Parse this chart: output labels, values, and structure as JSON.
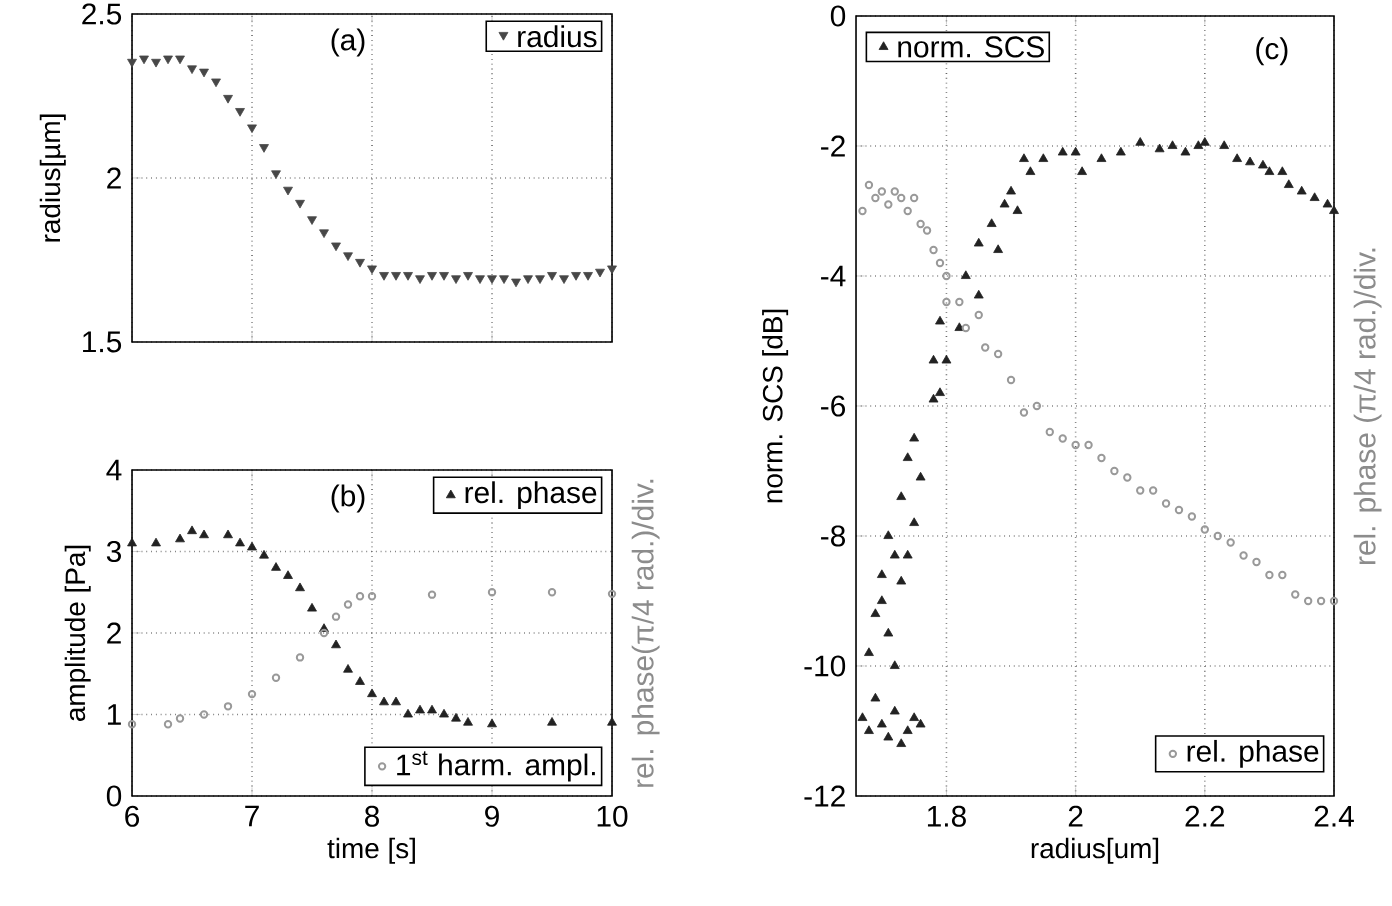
{
  "chart_data": [
    {
      "type": "scatter",
      "ylabel": "radius[µm]",
      "annotations": [
        "(a)"
      ],
      "x": [
        6.0,
        6.1,
        6.2,
        6.3,
        6.4,
        6.5,
        6.6,
        6.7,
        6.8,
        6.9,
        7.0,
        7.1,
        7.2,
        7.3,
        7.4,
        7.5,
        7.6,
        7.7,
        7.8,
        7.9,
        8.0,
        8.1,
        8.2,
        8.3,
        8.4,
        8.5,
        8.6,
        8.7,
        8.8,
        8.9,
        9.0,
        9.1,
        9.2,
        9.3,
        9.4,
        9.5,
        9.6,
        9.7,
        9.8,
        9.9,
        10.0
      ],
      "series": [
        {
          "name": "radius",
          "color": "#474747",
          "marker": "triangle down",
          "values": [
            2.35,
            2.36,
            2.35,
            2.36,
            2.36,
            2.33,
            2.32,
            2.29,
            2.24,
            2.2,
            2.15,
            2.09,
            2.01,
            1.96,
            1.92,
            1.87,
            1.83,
            1.79,
            1.76,
            1.74,
            1.72,
            1.7,
            1.7,
            1.7,
            1.69,
            1.7,
            1.7,
            1.69,
            1.7,
            1.69,
            1.69,
            1.69,
            1.68,
            1.69,
            1.69,
            1.7,
            1.69,
            1.7,
            1.7,
            1.71,
            1.72
          ]
        }
      ],
      "xlim": [
        6,
        10
      ],
      "xticks": [
        6,
        7,
        8,
        9,
        10
      ],
      "ylim": [
        1.5,
        2.5
      ],
      "yticks": [
        1.5,
        2,
        2.5
      ],
      "tick_labels": "y",
      "grid": true,
      "legend": "top right"
    },
    {
      "type": "scatter",
      "xlabel": "time [s]",
      "ylabel": "amplitude   [Pa]",
      "y2label": "rel. phase(π/4 rad.)/div.",
      "annotations": [
        "(b)"
      ],
      "series": [
        {
          "name": "rel. phase",
          "color": "#222222",
          "marker": "triangle",
          "x": [
            6.0,
            6.2,
            6.4,
            6.5,
            6.6,
            6.8,
            6.9,
            7.0,
            7.1,
            7.2,
            7.3,
            7.4,
            7.5,
            7.6,
            7.7,
            7.8,
            7.9,
            8.0,
            8.1,
            8.2,
            8.3,
            8.4,
            8.5,
            8.6,
            8.7,
            8.8,
            9.0,
            9.5,
            10.0
          ],
          "values": [
            3.1,
            3.1,
            3.15,
            3.25,
            3.2,
            3.2,
            3.1,
            3.05,
            2.95,
            2.8,
            2.7,
            2.55,
            2.3,
            2.05,
            1.85,
            1.55,
            1.4,
            1.25,
            1.15,
            1.15,
            1.0,
            1.05,
            1.05,
            1.0,
            0.95,
            0.9,
            0.88,
            0.9,
            0.9
          ]
        },
        {
          "name": "1$^{st}$ harm. ampl.",
          "color": "#999999",
          "marker": "circle",
          "x": [
            6.0,
            6.3,
            6.4,
            6.6,
            6.8,
            7.0,
            7.2,
            7.4,
            7.6,
            7.7,
            7.8,
            7.9,
            8.0,
            8.5,
            9.0,
            9.5,
            10.0
          ],
          "values": [
            0.88,
            0.88,
            0.95,
            1.0,
            1.1,
            1.25,
            1.45,
            1.7,
            2.0,
            2.2,
            2.35,
            2.45,
            2.45,
            2.47,
            2.5,
            2.5,
            2.48
          ]
        }
      ],
      "xlim": [
        6,
        10
      ],
      "xticks": [
        6,
        7,
        8,
        9,
        10
      ],
      "ylim": [
        0,
        4
      ],
      "yticks": [
        0,
        1,
        2,
        3,
        4
      ],
      "grid": true,
      "legend": "top right"
    },
    {
      "type": "scatter",
      "xlabel": "radius[um]",
      "ylabel": "norm. SCS   [dB]",
      "y2label": "rel. phase (π/4 rad.)/div.",
      "annotations": [
        "(c)"
      ],
      "series": [
        {
          "name": "norm. SCS",
          "color": "#222222",
          "marker": "triangle",
          "x": [
            1.67,
            1.68,
            1.69,
            1.7,
            1.71,
            1.72,
            1.73,
            1.74,
            1.75,
            1.76,
            1.68,
            1.69,
            1.7,
            1.71,
            1.72,
            1.7,
            1.71,
            1.72,
            1.73,
            1.74,
            1.74,
            1.75,
            1.73,
            1.76,
            1.75,
            1.78,
            1.78,
            1.79,
            1.8,
            1.79,
            1.82,
            1.83,
            1.85,
            1.85,
            1.87,
            1.88,
            1.89,
            1.9,
            1.91,
            1.92,
            1.93,
            1.95,
            1.98,
            2.0,
            2.01,
            2.04,
            2.07,
            2.1,
            2.13,
            2.15,
            2.17,
            2.19,
            2.2,
            2.23,
            2.25,
            2.27,
            2.29,
            2.3,
            2.32,
            2.33,
            2.35,
            2.37,
            2.39,
            2.4
          ],
          "values": [
            -10.8,
            -11.0,
            -10.5,
            -10.9,
            -11.1,
            -10.7,
            -11.2,
            -11.0,
            -10.8,
            -10.9,
            -9.8,
            -9.2,
            -9.0,
            -9.5,
            -10.0,
            -8.6,
            -8.0,
            -8.3,
            -8.7,
            -8.3,
            -6.8,
            -6.5,
            -7.4,
            -7.1,
            -7.8,
            -5.9,
            -5.3,
            -5.8,
            -5.3,
            -4.7,
            -4.8,
            -4.0,
            -4.3,
            -3.5,
            -3.2,
            -3.6,
            -2.9,
            -2.7,
            -3.0,
            -2.2,
            -2.4,
            -2.2,
            -2.1,
            -2.1,
            -2.4,
            -2.2,
            -2.1,
            -1.95,
            -2.05,
            -2.0,
            -2.1,
            -2.0,
            -1.95,
            -2.0,
            -2.2,
            -2.25,
            -2.3,
            -2.4,
            -2.4,
            -2.6,
            -2.7,
            -2.8,
            -2.9,
            -3.0
          ]
        },
        {
          "name": "rel. phase",
          "color": "#999999",
          "marker": "circle",
          "x": [
            1.67,
            1.68,
            1.69,
            1.7,
            1.71,
            1.72,
            1.73,
            1.74,
            1.75,
            1.76,
            1.77,
            1.78,
            1.79,
            1.8,
            1.8,
            1.82,
            1.83,
            1.85,
            1.86,
            1.88,
            1.9,
            1.92,
            1.94,
            1.96,
            1.98,
            2.0,
            2.02,
            2.04,
            2.06,
            2.08,
            2.1,
            2.12,
            2.14,
            2.16,
            2.18,
            2.2,
            2.22,
            2.24,
            2.26,
            2.28,
            2.3,
            2.32,
            2.34,
            2.36,
            2.38,
            2.4
          ],
          "values": [
            -3.0,
            -2.6,
            -2.8,
            -2.7,
            -2.9,
            -2.7,
            -2.8,
            -3.0,
            -2.8,
            -3.2,
            -3.3,
            -3.6,
            -3.8,
            -4.0,
            -4.4,
            -4.4,
            -4.8,
            -4.6,
            -5.1,
            -5.2,
            -5.6,
            -6.1,
            -6.0,
            -6.4,
            -6.5,
            -6.6,
            -6.6,
            -6.8,
            -7.0,
            -7.1,
            -7.3,
            -7.3,
            -7.5,
            -7.6,
            -7.7,
            -7.9,
            -8.0,
            -8.1,
            -8.3,
            -8.4,
            -8.6,
            -8.6,
            -8.9,
            -9.0,
            -9.0,
            -9.0
          ]
        }
      ],
      "xlim": [
        1.66,
        2.4
      ],
      "xticks": [
        1.8,
        2,
        2.2,
        2.4
      ],
      "ylim": [
        -12,
        0
      ],
      "yticks": [
        -12,
        -10,
        -8,
        -6,
        -4,
        -2,
        0
      ],
      "grid": true,
      "legend": "top left"
    }
  ]
}
